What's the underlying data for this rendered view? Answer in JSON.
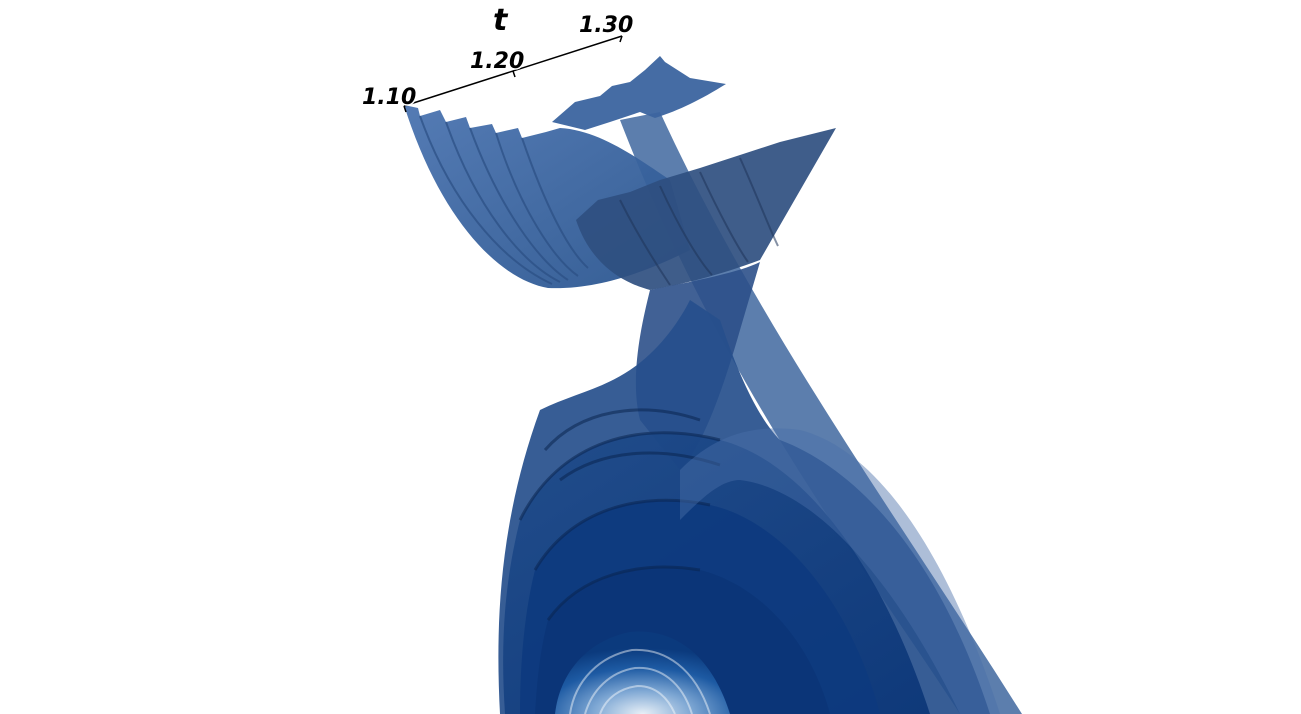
{
  "axis": {
    "title": "t",
    "ticks": [
      "1.10",
      "1.20",
      "1.30"
    ]
  },
  "colors": {
    "background": "#ffffff",
    "surface_light": "#3a64a3",
    "surface_mid": "#23508f",
    "surface_dark": "#0b3a7d",
    "surface_shadow": "#1e2f4a",
    "core_light": "#bfd6ea",
    "axis_line": "#000000"
  }
}
